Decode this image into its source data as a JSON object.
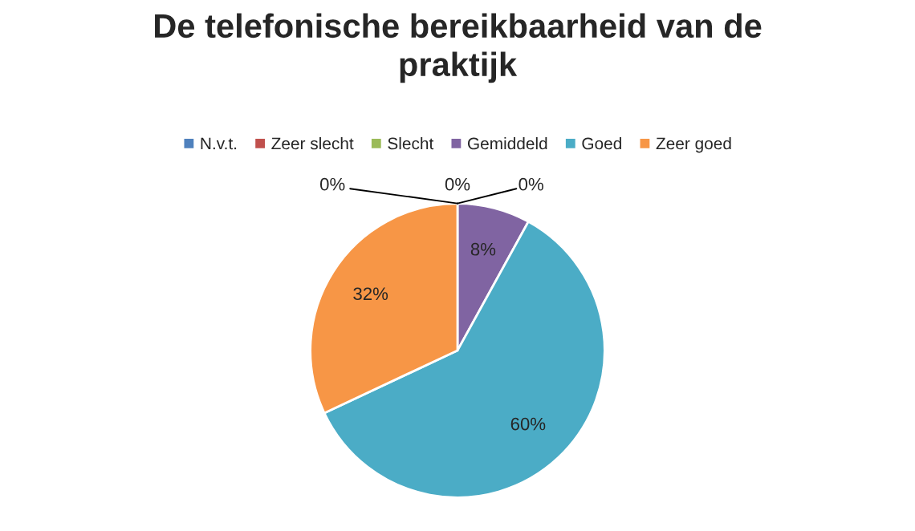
{
  "chart_data": {
    "type": "pie",
    "title": "De telefonische bereikbaarheid van de praktijk",
    "categories": [
      "N.v.t.",
      "Zeer slecht",
      "Slecht",
      "Gemiddeld",
      "Goed",
      "Zeer goed"
    ],
    "values": [
      0,
      0,
      0,
      8,
      60,
      32
    ],
    "colors": [
      "#4f81bd",
      "#c0504d",
      "#9bbb59",
      "#8064a2",
      "#4bacc6",
      "#f79646"
    ],
    "value_labels": [
      "0%",
      "0%",
      "0%",
      "8%",
      "60%",
      "32%"
    ],
    "legend": "top"
  }
}
